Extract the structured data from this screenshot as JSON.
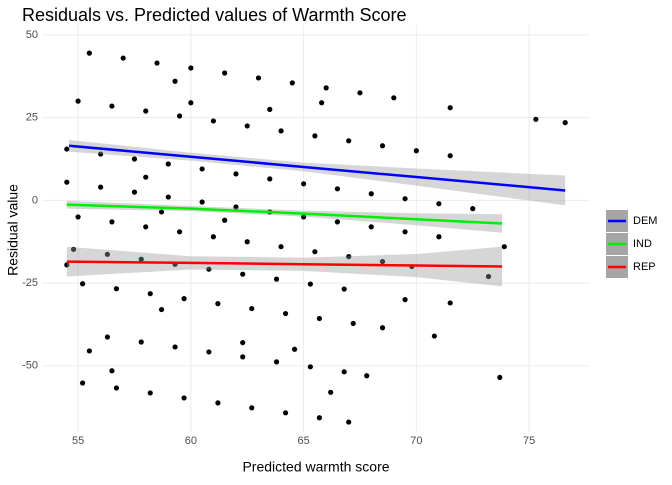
{
  "chart_data": {
    "type": "scatter",
    "title": "Residuals vs. Predicted values of Warmth Score",
    "x_label": "Predicted warmth score",
    "y_label": "Residual value",
    "xlim": [
      53.4,
      77.7
    ],
    "ylim": [
      -70,
      53
    ],
    "xticks": [
      55,
      60,
      65,
      70,
      75
    ],
    "yticks": [
      -50,
      -25,
      0,
      25,
      50
    ],
    "grid": true,
    "legend": "right",
    "band_color": "#999999",
    "points": {
      "color": "#000000",
      "x": [
        55.5,
        57,
        58.5,
        60,
        61.5,
        63,
        64.5,
        66,
        67.5,
        69,
        55,
        56.5,
        58,
        59.5,
        61,
        62.5,
        64,
        65.5,
        67,
        68.5,
        70,
        71.5,
        54.5,
        56,
        57.5,
        59,
        60.5,
        62,
        63.5,
        65,
        66.5,
        68,
        69.5,
        71,
        72.5,
        54.5,
        56,
        57.5,
        59,
        60.5,
        62,
        63.5,
        65,
        66.5,
        68,
        69.5,
        71,
        55,
        56.5,
        58,
        59.5,
        61,
        62.5,
        64,
        65.5,
        67,
        68.5,
        54.8,
        56.3,
        57.8,
        59.3,
        60.8,
        62.3,
        63.8,
        65.3,
        66.8,
        55.2,
        56.7,
        58.2,
        59.7,
        61.2,
        62.7,
        64.2,
        65.7,
        67.2,
        68.5,
        56.3,
        57.8,
        59.3,
        60.8,
        62.3,
        63.8,
        65.3,
        66.8,
        55.2,
        56.7,
        58.2,
        59.7,
        61.2,
        62.7,
        64.2,
        65.7,
        67,
        75.3,
        76.6,
        71.5,
        73.7,
        73.2,
        71.5,
        70.8,
        73.9,
        69.5,
        58.7,
        62.3,
        64.6,
        66.2,
        67.8,
        56.5,
        55.5,
        54.5,
        59.3,
        60,
        63.5,
        65.8,
        58,
        61.5,
        58.7,
        69.8
      ],
      "y": [
        44.5,
        43,
        41.5,
        40,
        38.5,
        37,
        35.5,
        34,
        32.5,
        31,
        30,
        28.5,
        27,
        25.5,
        24,
        22.5,
        21,
        19.5,
        18,
        16.5,
        15,
        13.5,
        15.5,
        14,
        12.5,
        11,
        9.5,
        8,
        6.5,
        5,
        3.5,
        2,
        0.5,
        -1,
        -2.5,
        5.5,
        4,
        2.5,
        1,
        -0.5,
        -2,
        -3.5,
        -5,
        -6.5,
        -8,
        -9.5,
        -11,
        -5,
        -6.5,
        -8,
        -9.5,
        -11,
        -12.5,
        -14,
        -15.5,
        -17,
        -18.5,
        -14.8,
        -16.3,
        -17.8,
        -19.3,
        -20.8,
        -22.3,
        -23.8,
        -25.3,
        -26.8,
        -25.2,
        -26.7,
        -28.2,
        -29.7,
        -31.2,
        -32.7,
        -34.2,
        -35.7,
        -37.2,
        -38.5,
        -41.3,
        -42.8,
        -44.3,
        -45.8,
        -47.3,
        -48.8,
        -50.3,
        -51.8,
        -55.2,
        -56.7,
        -58.2,
        -59.7,
        -61.2,
        -62.7,
        -64.2,
        -65.7,
        -67,
        24.5,
        23.5,
        28,
        -53.5,
        -23,
        -31,
        -41,
        -14,
        -30,
        -33,
        -43,
        -45,
        -58,
        -53,
        -51.5,
        -45.5,
        -19.5,
        36,
        29.5,
        27.5,
        29.5,
        7,
        -6,
        -3.5,
        -20
      ]
    },
    "series": [
      {
        "name": "DEM",
        "color": "#0000ff",
        "x": [
          54.6,
          60,
          65,
          70,
          76.6
        ],
        "values": [
          16.5,
          13.2,
          10.1,
          7.05,
          3
        ],
        "lower": [
          14.7,
          12,
          8.8,
          4.45,
          -1.5
        ],
        "upper": [
          18.3,
          14.4,
          11.4,
          9.65,
          7.5
        ]
      },
      {
        "name": "IND",
        "color": "#00ee00",
        "x": [
          54.5,
          60,
          65,
          70,
          73.8
        ],
        "values": [
          -1.3,
          -2.5,
          -4,
          -5.7,
          -7
        ],
        "lower": [
          -2.5,
          -3.3,
          -4.9,
          -7.5,
          -9.8
        ],
        "upper": [
          -0.1,
          -1.7,
          -3.1,
          -3.9,
          -4.2
        ]
      },
      {
        "name": "REP",
        "color": "#ff0000",
        "x": [
          54.5,
          60,
          65,
          70,
          73.8
        ],
        "values": [
          -18.5,
          -18.9,
          -19.3,
          -19.7,
          -20
        ],
        "lower": [
          -23,
          -20.9,
          -21.3,
          -23.2,
          -26
        ],
        "upper": [
          -14,
          -16.9,
          -17.3,
          -16.2,
          -14
        ]
      }
    ]
  }
}
